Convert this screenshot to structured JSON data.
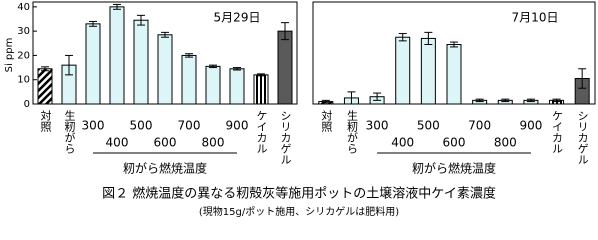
{
  "chart_data": [
    {
      "type": "bar",
      "title": "5月29日",
      "y_label": "Si ppm",
      "group_label": "籾がら燃焼温度",
      "categories": [
        "対照",
        "生籾がら",
        "300",
        "400",
        "500",
        "600",
        "700",
        "800",
        "900",
        "ケイカル",
        "シリカゲル"
      ],
      "values": [
        14.5,
        16,
        33,
        40,
        34.5,
        28.5,
        20,
        15.5,
        14.5,
        12,
        30
      ],
      "errors": [
        0.8,
        4,
        1,
        1,
        2,
        1,
        0.7,
        0.5,
        0.5,
        0.4,
        3.5
      ],
      "colors": [
        "stripes-diagonal",
        "#dcf6f8",
        "#dcf6f8",
        "#dcf6f8",
        "#dcf6f8",
        "#dcf6f8",
        "#dcf6f8",
        "#dcf6f8",
        "#dcf6f8",
        "stripes-vertical",
        "#5a5a5a"
      ],
      "ylim": [
        0,
        42
      ],
      "yticks": [
        0,
        10,
        20,
        30,
        40
      ]
    },
    {
      "type": "bar",
      "title": "7月10日",
      "group_label": "籾がら燃焼温度",
      "categories": [
        "対照",
        "生籾がら",
        "300",
        "400",
        "500",
        "600",
        "700",
        "800",
        "900",
        "ケイカル",
        "シリカゲル"
      ],
      "values": [
        1,
        2.5,
        3,
        27.5,
        27,
        24.5,
        1.5,
        1.5,
        1.5,
        1.5,
        10.5
      ],
      "errors": [
        0.5,
        2.5,
        1.5,
        1.5,
        2.5,
        1,
        0.5,
        0.5,
        0.5,
        0.5,
        4
      ],
      "colors": [
        "stripes-diagonal",
        "#dcf6f8",
        "#dcf6f8",
        "#dcf6f8",
        "#dcf6f8",
        "#dcf6f8",
        "#dcf6f8",
        "#dcf6f8",
        "#dcf6f8",
        "stripes-vertical",
        "#5a5a5a"
      ],
      "ylim": [
        0,
        42
      ]
    }
  ],
  "caption": "図２ 燃焼温度の異なる籾殻灰等施用ポットの土壌溶液中ケイ素濃度",
  "note": "(現物15g/ポット施用、シリカゲルは肥料用)"
}
